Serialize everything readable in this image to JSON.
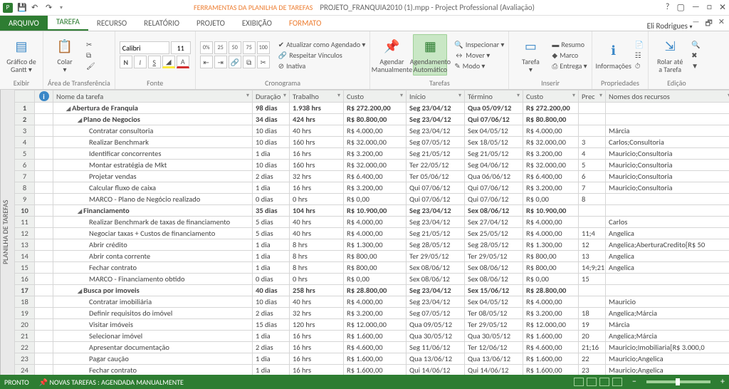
{
  "titlebar": {
    "tools_label": "FERRAMENTAS DA PLANILHA DE TAREFAS",
    "filename": "PROJETO_FRANQUIA2010 (1).mpp - Project Professional (Avaliação)",
    "user": "Eli Rodrigues"
  },
  "tabs": {
    "file": "ARQUIVO",
    "items": [
      "TAREFA",
      "RECURSO",
      "RELATÓRIO",
      "PROJETO",
      "EXIBIÇÃO"
    ],
    "format": "FORMATO"
  },
  "ribbon": {
    "groups": {
      "exibir": {
        "label": "Exibir",
        "gantt": "Gráfico de\nGantt ▾"
      },
      "clip": {
        "label": "Área de Transferência",
        "colar": "Colar\n▾"
      },
      "fonte": {
        "label": "Fonte",
        "font": "Calibri",
        "size": "11"
      },
      "crono": {
        "label": "Cronograma",
        "atualizar": "Atualizar como Agendado ▾",
        "respeitar": "Respeitar Vínculos",
        "inativa": "Inativa"
      },
      "tarefas": {
        "label": "Tarefas",
        "manual": "Agendar\nManualmente",
        "auto": "Agendamento\nAutomático",
        "inspecionar": "Inspecionar ▾",
        "mover": "Mover ▾",
        "modo": "Modo ▾"
      },
      "inserir": {
        "label": "Inserir",
        "tarefa": "Tarefa\n▾",
        "resumo": "Resumo",
        "marco": "Marco",
        "entrega": "Entrega ▾"
      },
      "prop": {
        "label": "Propriedades",
        "info": "Informações"
      },
      "edicao": {
        "label": "Edição",
        "rolar": "Rolar até\na Tarefa"
      }
    }
  },
  "grid": {
    "side_caption": "PLANILHA DE TAREFAS",
    "headers": {
      "nome": "Nome da tarefa",
      "dur": "Duração",
      "trab": "Trabalho",
      "custo": "Custo",
      "ini": "Início",
      "term": "Término",
      "custo2": "Custo",
      "prec": "Prec",
      "res": "Nomes dos recursos"
    },
    "rows": [
      {
        "n": 1,
        "lvl": 1,
        "b": true,
        "nome": "Abertura de Franquia",
        "dur": "98 dias",
        "trab": "1.938 hrs",
        "custo": "R$ 272.200,00",
        "ini": "Seg 23/04/12",
        "term": "Qua 05/09/12",
        "c2": "R$ 272.200,00",
        "prec": "",
        "res": ""
      },
      {
        "n": 2,
        "lvl": 2,
        "b": true,
        "nome": "Plano de Negocios",
        "dur": "34 dias",
        "trab": "424 hrs",
        "custo": "R$ 80.800,00",
        "ini": "Seg 23/04/12",
        "term": "Qui 07/06/12",
        "c2": "R$ 80.800,00",
        "prec": "",
        "res": ""
      },
      {
        "n": 3,
        "lvl": 3,
        "b": false,
        "nome": "Contratar consultoria",
        "dur": "10 dias",
        "trab": "40 hrs",
        "custo": "R$ 4.000,00",
        "ini": "Seg 23/04/12",
        "term": "Sex 04/05/12",
        "c2": "R$ 4.000,00",
        "prec": "",
        "res": "Márcia"
      },
      {
        "n": 4,
        "lvl": 3,
        "b": false,
        "nome": "Realizar Benchmark",
        "dur": "10 dias",
        "trab": "160 hrs",
        "custo": "R$ 32.000,00",
        "ini": "Seg 07/05/12",
        "term": "Sex 18/05/12",
        "c2": "R$ 32.000,00",
        "prec": "3",
        "res": "Carlos;Consultoria"
      },
      {
        "n": 5,
        "lvl": 3,
        "b": false,
        "nome": "Identificar concorrentes",
        "dur": "1 dia",
        "trab": "16 hrs",
        "custo": "R$ 3.200,00",
        "ini": "Seg 21/05/12",
        "term": "Seg 21/05/12",
        "c2": "R$ 3.200,00",
        "prec": "4",
        "res": "Mauricio;Consultoria"
      },
      {
        "n": 6,
        "lvl": 3,
        "b": false,
        "nome": "Montar estratégia de Mkt",
        "dur": "10 dias",
        "trab": "160 hrs",
        "custo": "R$ 32.000,00",
        "ini": "Ter 22/05/12",
        "term": "Seg 04/06/12",
        "c2": "R$ 32.000,00",
        "prec": "5",
        "res": "Mauricio;Consultoria"
      },
      {
        "n": 7,
        "lvl": 3,
        "b": false,
        "nome": "Projetar vendas",
        "dur": "2 dias",
        "trab": "32 hrs",
        "custo": "R$ 6.400,00",
        "ini": "Ter 05/06/12",
        "term": "Qua 06/06/12",
        "c2": "R$ 6.400,00",
        "prec": "6",
        "res": "Mauricio;Consultoria"
      },
      {
        "n": 8,
        "lvl": 3,
        "b": false,
        "nome": "Calcular fluxo de caixa",
        "dur": "1 dia",
        "trab": "16 hrs",
        "custo": "R$ 3.200,00",
        "ini": "Qui 07/06/12",
        "term": "Qui 07/06/12",
        "c2": "R$ 3.200,00",
        "prec": "7",
        "res": "Mauricio;Consultoria"
      },
      {
        "n": 9,
        "lvl": 3,
        "b": false,
        "nome": "MARCO - Plano de Negócio realizado",
        "dur": "0 dias",
        "trab": "0 hrs",
        "custo": "R$ 0,00",
        "ini": "Qui 07/06/12",
        "term": "Qui 07/06/12",
        "c2": "R$ 0,00",
        "prec": "8",
        "res": ""
      },
      {
        "n": 10,
        "lvl": 2,
        "b": true,
        "nome": "Financiamento",
        "dur": "35 dias",
        "trab": "104 hrs",
        "custo": "R$ 10.900,00",
        "ini": "Seg 23/04/12",
        "term": "Sex 08/06/12",
        "c2": "R$ 10.900,00",
        "prec": "",
        "res": ""
      },
      {
        "n": 11,
        "lvl": 3,
        "b": false,
        "nome": "Realizar Benchmark de taxas de financiamento",
        "dur": "5 dias",
        "trab": "40 hrs",
        "custo": "R$ 4.000,00",
        "ini": "Seg 23/04/12",
        "term": "Sex 27/04/12",
        "c2": "R$ 4.000,00",
        "prec": "",
        "res": "Carlos"
      },
      {
        "n": 12,
        "lvl": 3,
        "b": false,
        "nome": "Negociar taxas + Custos de financiamento",
        "dur": "5 dias",
        "trab": "40 hrs",
        "custo": "R$ 4.000,00",
        "ini": "Seg 21/05/12",
        "term": "Sex 25/05/12",
        "c2": "R$ 4.000,00",
        "prec": "11;4",
        "res": "Angelica"
      },
      {
        "n": 13,
        "lvl": 3,
        "b": false,
        "nome": "Abrir crédito",
        "dur": "1 dia",
        "trab": "8 hrs",
        "custo": "R$ 1.300,00",
        "ini": "Seg 28/05/12",
        "term": "Seg 28/05/12",
        "c2": "R$ 1.300,00",
        "prec": "12",
        "res": "Angelica;AberturaCredito[R$ 50"
      },
      {
        "n": 14,
        "lvl": 3,
        "b": false,
        "nome": "Abrir conta corrente",
        "dur": "1 dia",
        "trab": "8 hrs",
        "custo": "R$ 800,00",
        "ini": "Ter 29/05/12",
        "term": "Ter 29/05/12",
        "c2": "R$ 800,00",
        "prec": "13",
        "res": "Angelica"
      },
      {
        "n": 15,
        "lvl": 3,
        "b": false,
        "nome": "Fechar contrato",
        "dur": "1 dia",
        "trab": "8 hrs",
        "custo": "R$ 800,00",
        "ini": "Sex 08/06/12",
        "term": "Sex 08/06/12",
        "c2": "R$ 800,00",
        "prec": "14;9;21",
        "res": "Angelica"
      },
      {
        "n": 16,
        "lvl": 3,
        "b": false,
        "nome": "MARCO - Financiamento obtido",
        "dur": "0 dias",
        "trab": "0 hrs",
        "custo": "R$ 0,00",
        "ini": "Sex 08/06/12",
        "term": "Sex 08/06/12",
        "c2": "R$ 0,00",
        "prec": "15",
        "res": ""
      },
      {
        "n": 17,
        "lvl": 2,
        "b": true,
        "nome": "Busca por imoveis",
        "dur": "40 dias",
        "trab": "258 hrs",
        "custo": "R$ 28.800,00",
        "ini": "Seg 23/04/12",
        "term": "Sex 15/06/12",
        "c2": "R$ 28.800,00",
        "prec": "",
        "res": ""
      },
      {
        "n": 18,
        "lvl": 3,
        "b": false,
        "nome": "Contratar imobiliária",
        "dur": "10 dias",
        "trab": "40 hrs",
        "custo": "R$ 4.000,00",
        "ini": "Seg 23/04/12",
        "term": "Sex 04/05/12",
        "c2": "R$ 4.000,00",
        "prec": "",
        "res": "Mauricio"
      },
      {
        "n": 19,
        "lvl": 3,
        "b": false,
        "nome": "Definir requisitos do imóvel",
        "dur": "2 dias",
        "trab": "32 hrs",
        "custo": "R$ 3.200,00",
        "ini": "Seg 07/05/12",
        "term": "Ter 08/05/12",
        "c2": "R$ 3.200,00",
        "prec": "18",
        "res": "Angelica;Márcia"
      },
      {
        "n": 20,
        "lvl": 3,
        "b": false,
        "nome": "Visitar imóveis",
        "dur": "15 dias",
        "trab": "120 hrs",
        "custo": "R$ 12.000,00",
        "ini": "Qua 09/05/12",
        "term": "Ter 29/05/12",
        "c2": "R$ 12.000,00",
        "prec": "19",
        "res": "Márcia"
      },
      {
        "n": 21,
        "lvl": 3,
        "b": false,
        "nome": "Selecionar imóvel",
        "dur": "1 dia",
        "trab": "16 hrs",
        "custo": "R$ 1.600,00",
        "ini": "Qua 30/05/12",
        "term": "Qua 30/05/12",
        "c2": "R$ 1.600,00",
        "prec": "20",
        "res": "Angelica;Márcia"
      },
      {
        "n": 22,
        "lvl": 3,
        "b": false,
        "nome": "Apresentar documentação",
        "dur": "2 dias",
        "trab": "16 hrs",
        "custo": "R$ 4.600,00",
        "ini": "Seg 11/06/12",
        "term": "Ter 12/06/12",
        "c2": "R$ 4.600,00",
        "prec": "21;16",
        "res": "Mauricio;Imobiliaria[R$ 3.000,0"
      },
      {
        "n": 23,
        "lvl": 3,
        "b": false,
        "nome": "Pagar caução",
        "dur": "1 dia",
        "trab": "16 hrs",
        "custo": "R$ 1.600,00",
        "ini": "Qua 13/06/12",
        "term": "Qua 13/06/12",
        "c2": "R$ 1.600,00",
        "prec": "22",
        "res": "Mauricio;Angelica"
      },
      {
        "n": 24,
        "lvl": 3,
        "b": false,
        "nome": "Fechar contrato",
        "dur": "1 dia",
        "trab": "16 hrs",
        "custo": "R$ 1.600,00",
        "ini": "Qui 14/06/12",
        "term": "Qui 14/06/12",
        "c2": "R$ 1.600,00",
        "prec": "23",
        "res": "Mauricio;Angelica"
      }
    ]
  },
  "statusbar": {
    "ready": "PRONTO",
    "newtasks": "NOVAS TAREFAS : AGENDADA MANUALMENTE"
  },
  "colors": {
    "accent": "#2e7d32",
    "orange": "#ed7d31",
    "grid_border": "#d6d6d6",
    "header_bg": "#eef0ee"
  }
}
